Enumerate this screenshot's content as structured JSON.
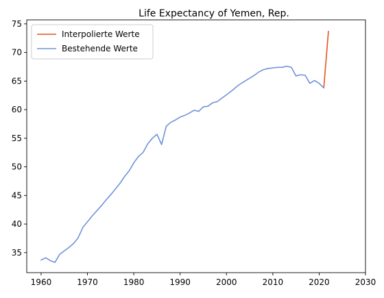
{
  "chart_data": {
    "type": "line",
    "title": "Life Expectancy of Yemen, Rep.",
    "xlabel": "",
    "ylabel": "",
    "xlim": [
      1956.9,
      2030
    ],
    "ylim": [
      31.5,
      75.7
    ],
    "xticks": [
      1960,
      1970,
      1980,
      1990,
      2000,
      2010,
      2020,
      2030
    ],
    "yticks": [
      35,
      40,
      45,
      50,
      55,
      60,
      65,
      70,
      75
    ],
    "grid": false,
    "legend_position": "top-left",
    "series": [
      {
        "name": "Interpolierte Werte",
        "color": "#e8501e",
        "x": [
          2021,
          2022
        ],
        "y": [
          63.8,
          73.7
        ]
      },
      {
        "name": "Bestehende Werte",
        "color": "#6f92d8",
        "x": [
          1960,
          1961,
          1962,
          1963,
          1964,
          1965,
          1966,
          1967,
          1968,
          1969,
          1970,
          1971,
          1972,
          1973,
          1974,
          1975,
          1976,
          1977,
          1978,
          1979,
          1980,
          1981,
          1982,
          1983,
          1984,
          1985,
          1986,
          1987,
          1988,
          1989,
          1990,
          1991,
          1992,
          1993,
          1994,
          1995,
          1996,
          1997,
          1998,
          1999,
          2000,
          2001,
          2002,
          2003,
          2004,
          2005,
          2006,
          2007,
          2008,
          2009,
          2010,
          2011,
          2012,
          2013,
          2014,
          2015,
          2016,
          2017,
          2018,
          2019,
          2020,
          2021
        ],
        "y": [
          33.7,
          34.1,
          33.6,
          33.3,
          34.7,
          35.3,
          35.9,
          36.6,
          37.6,
          39.4,
          40.4,
          41.4,
          42.3,
          43.2,
          44.2,
          45.1,
          46.1,
          47.1,
          48.3,
          49.3,
          50.7,
          51.8,
          52.5,
          54.0,
          55.0,
          55.7,
          53.9,
          57.1,
          57.8,
          58.2,
          58.7,
          59.0,
          59.4,
          59.9,
          59.7,
          60.5,
          60.6,
          61.2,
          61.4,
          62.0,
          62.6,
          63.2,
          63.9,
          64.5,
          65.0,
          65.5,
          66.0,
          66.6,
          67.0,
          67.2,
          67.3,
          67.4,
          67.4,
          67.6,
          67.4,
          65.9,
          66.1,
          66.0,
          64.6,
          65.1,
          64.6,
          63.8
        ]
      }
    ]
  }
}
